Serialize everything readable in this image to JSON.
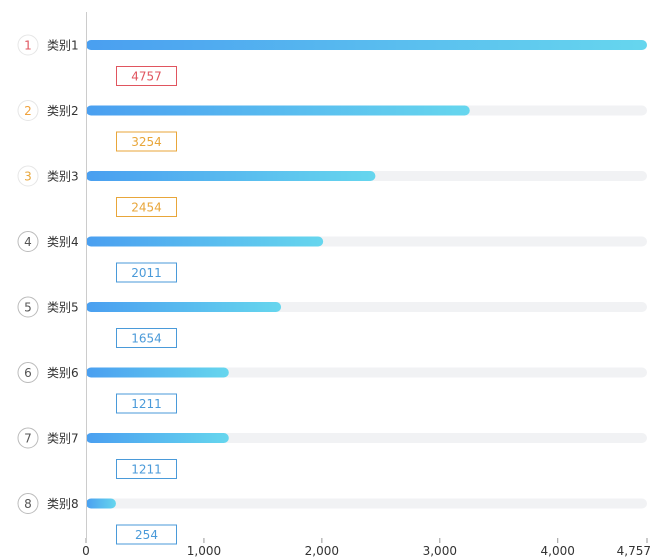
{
  "chart_data": {
    "type": "bar",
    "orientation": "horizontal",
    "categories": [
      "类别1",
      "类别2",
      "类别3",
      "类别4",
      "类别5",
      "类别6",
      "类别7",
      "类别8"
    ],
    "ranks": [
      "1",
      "2",
      "3",
      "4",
      "5",
      "6",
      "7",
      "8"
    ],
    "values": [
      4757,
      3254,
      2454,
      2011,
      1654,
      1211,
      1211,
      254
    ],
    "value_labels": [
      "4757",
      "3254",
      "2454",
      "2011",
      "1654",
      "1211",
      "1211",
      "254"
    ],
    "xlim": [
      0,
      4757
    ],
    "x_ticks": [
      0,
      1000,
      2000,
      3000,
      4000,
      4757
    ],
    "x_tick_labels": [
      "0",
      "1,000",
      "2,000",
      "3,000",
      "4,000",
      "4,757"
    ],
    "title": "",
    "xlabel": "",
    "ylabel": "",
    "grid": false,
    "colors": {
      "bar_start": "#4a9ff0",
      "bar_end": "#66d6ee",
      "track": "#f1f2f4",
      "rank1": "#e0555f",
      "rank2": "#f0a23c",
      "rank3": "#e8a63a",
      "rank_other": "#555555",
      "label_first": "#e0555f",
      "label_second": "#e8a63a",
      "label_third": "#e8a63a",
      "label_other": "#4a9ad9"
    }
  }
}
